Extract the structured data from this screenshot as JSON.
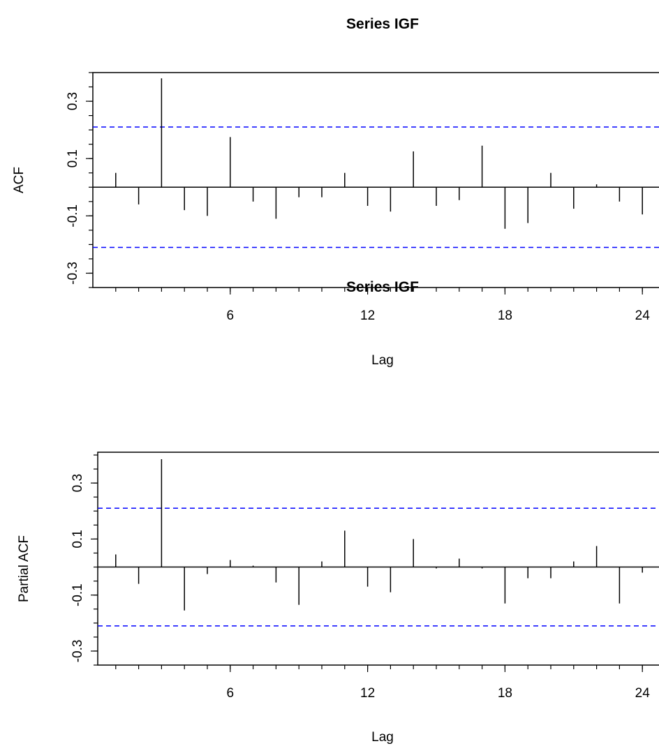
{
  "colors": {
    "background": "#ffffff",
    "spike": "#000000",
    "confidence_line": "#0000ff",
    "axis": "#000000"
  },
  "chart_data": [
    {
      "type": "bar",
      "title": "Series  IGF",
      "xlabel": "Lag",
      "ylabel": "ACF",
      "xlim": [
        0,
        24
      ],
      "ylim": [
        -0.35,
        0.4
      ],
      "x_ticks": [
        6,
        12,
        18,
        24
      ],
      "y_ticks": [
        "-0.3",
        "-0.1",
        "0.1",
        "0.3"
      ],
      "y_tick_values": [
        -0.3,
        -0.1,
        0.1,
        0.3
      ],
      "confidence_band": [
        -0.21,
        0.21
      ],
      "lags": [
        1,
        2,
        3,
        4,
        5,
        6,
        7,
        8,
        9,
        10,
        11,
        12,
        13,
        14,
        15,
        16,
        17,
        18,
        19,
        20,
        21,
        22,
        23,
        24
      ],
      "values": [
        0.05,
        -0.06,
        0.38,
        -0.08,
        -0.1,
        0.175,
        -0.05,
        -0.11,
        -0.035,
        -0.035,
        0.05,
        -0.065,
        -0.085,
        0.125,
        -0.065,
        -0.045,
        0.145,
        -0.145,
        -0.125,
        0.05,
        -0.075,
        0.01,
        -0.05,
        -0.095
      ],
      "grid": false
    },
    {
      "type": "bar",
      "title": "Series  IGF",
      "xlabel": "Lag",
      "ylabel": "Partial ACF",
      "xlim": [
        0,
        24
      ],
      "ylim": [
        -0.35,
        0.41
      ],
      "x_ticks": [
        6,
        12,
        18,
        24
      ],
      "y_ticks": [
        "-0.3",
        "-0.1",
        "0.1",
        "0.3"
      ],
      "y_tick_values": [
        -0.3,
        -0.1,
        0.1,
        0.3
      ],
      "confidence_band": [
        -0.21,
        0.21
      ],
      "lags": [
        1,
        2,
        3,
        4,
        5,
        6,
        7,
        8,
        9,
        10,
        11,
        12,
        13,
        14,
        15,
        16,
        17,
        18,
        19,
        20,
        21,
        22,
        23,
        24
      ],
      "values": [
        0.045,
        -0.06,
        0.385,
        -0.155,
        -0.025,
        0.025,
        0.005,
        -0.055,
        -0.135,
        0.02,
        0.13,
        -0.07,
        -0.09,
        0.1,
        -0.005,
        0.03,
        -0.005,
        -0.13,
        -0.04,
        -0.04,
        0.02,
        0.075,
        -0.13,
        -0.02
      ],
      "grid": false
    }
  ]
}
